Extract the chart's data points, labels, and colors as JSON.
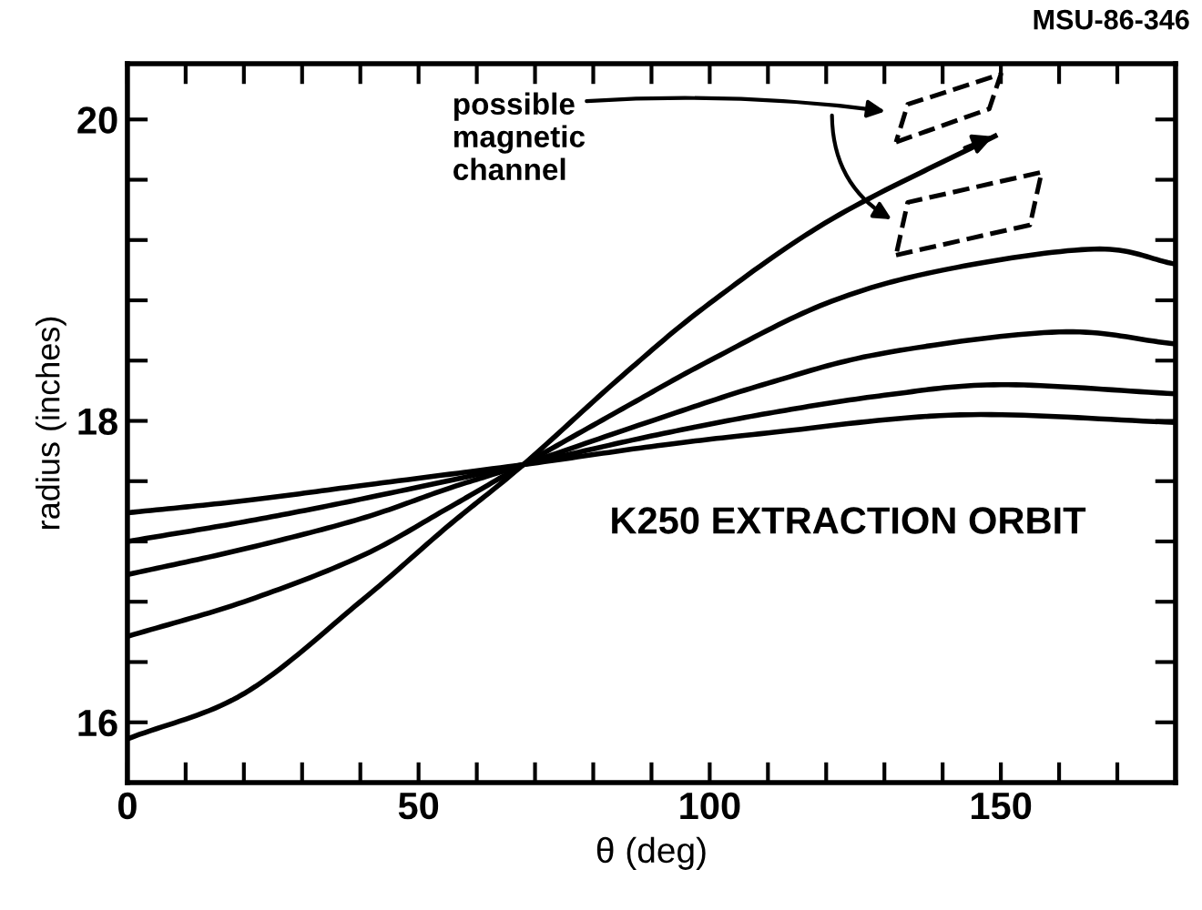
{
  "chart_data": {
    "type": "line",
    "xlabel": "θ (deg)",
    "ylabel": "radius (inches)",
    "annotations": [
      "MSU-86-346",
      "possible\nmagnetic\nchannel",
      "K250 EXTRACTION ORBIT"
    ],
    "xlim": [
      0,
      180
    ],
    "ylim": [
      15.6,
      20.37
    ],
    "xticks": [
      0,
      {
        "value": 10,
        "label": null
      },
      {
        "value": 20,
        "label": null
      },
      {
        "value": 30,
        "label": null
      },
      {
        "value": 40,
        "label": null
      },
      50,
      {
        "value": 60,
        "label": null
      },
      {
        "value": 70,
        "label": null
      },
      {
        "value": 80,
        "label": null
      },
      {
        "value": 90,
        "label": null
      },
      100,
      {
        "value": 110,
        "label": null
      },
      {
        "value": 120,
        "label": null
      },
      {
        "value": 130,
        "label": null
      },
      {
        "value": 140,
        "label": null
      },
      150,
      {
        "value": 160,
        "label": null
      },
      {
        "value": 170,
        "label": null
      }
    ],
    "yticks": [
      16,
      {
        "value": 16.4,
        "label": null
      },
      {
        "value": 16.8,
        "label": null
      },
      {
        "value": 17.2,
        "label": null
      },
      {
        "value": 17.6,
        "label": null
      },
      18,
      {
        "value": 18.4,
        "label": null
      },
      {
        "value": 18.8,
        "label": null
      },
      {
        "value": 19.2,
        "label": null
      },
      {
        "value": 19.6,
        "label": null
      },
      20
    ],
    "grid": false,
    "marker": "none",
    "line_style": "solid",
    "series": [
      {
        "color": "#000000",
        "x": [
          0,
          20,
          40,
          55,
          68,
          85,
          100,
          121,
          149
        ],
        "values": [
          15.89,
          16.19,
          16.8,
          17.3,
          17.71,
          18.3,
          18.78,
          19.34,
          19.89
        ]
      },
      {
        "color": "#000000",
        "x": [
          0,
          20,
          40,
          55,
          68,
          85,
          100,
          120,
          140,
          166,
          180
        ],
        "values": [
          16.57,
          16.8,
          17.1,
          17.42,
          17.71,
          18.08,
          18.4,
          18.78,
          19.0,
          19.14,
          19.04
        ]
      },
      {
        "color": "#000000",
        "x": [
          0,
          20,
          40,
          55,
          68,
          90,
          110,
          130,
          160,
          180
        ],
        "values": [
          16.98,
          17.15,
          17.35,
          17.55,
          17.71,
          18.0,
          18.25,
          18.45,
          18.59,
          18.51
        ]
      },
      {
        "color": "#000000",
        "x": [
          0,
          20,
          40,
          68,
          90,
          110,
          130,
          150,
          180
        ],
        "values": [
          17.2,
          17.33,
          17.48,
          17.71,
          17.9,
          18.05,
          18.17,
          18.24,
          18.18
        ]
      },
      {
        "color": "#000000",
        "x": [
          0,
          20,
          40,
          68,
          90,
          110,
          143,
          180
        ],
        "values": [
          17.39,
          17.47,
          17.57,
          17.71,
          17.83,
          17.92,
          18.04,
          17.99
        ]
      }
    ]
  }
}
